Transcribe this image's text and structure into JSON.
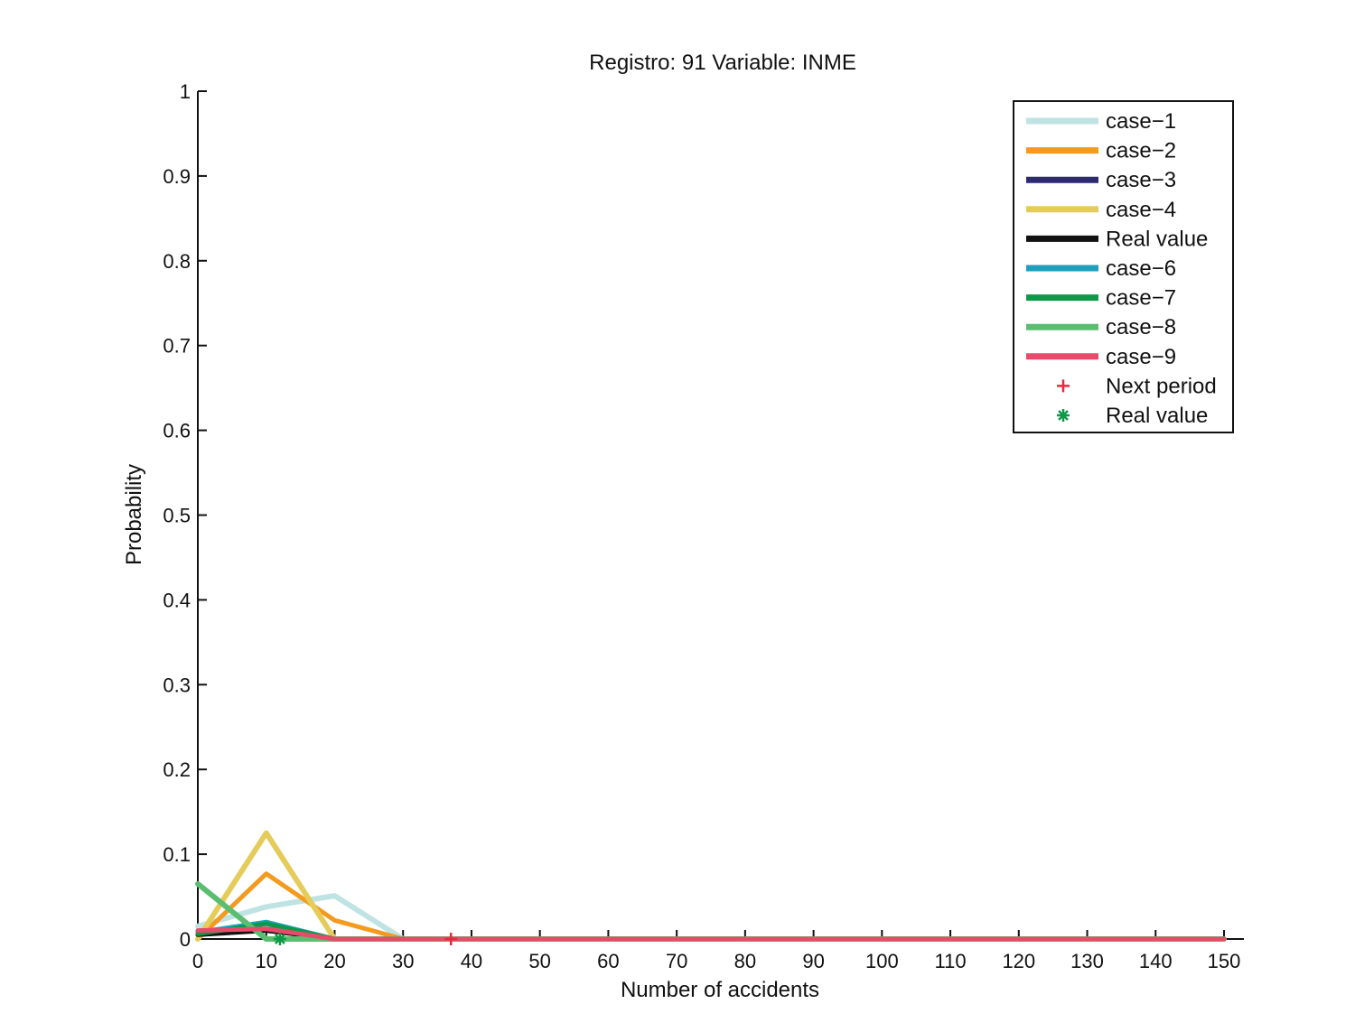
{
  "chart_data": {
    "type": "line",
    "title": "Registro: 91 Variable: INME",
    "xlabel": "Number of accidents",
    "ylabel": "Probability",
    "xlim": [
      0,
      150
    ],
    "ylim": [
      0,
      1
    ],
    "xticks": [
      0,
      10,
      20,
      30,
      40,
      50,
      60,
      70,
      80,
      90,
      100,
      110,
      120,
      130,
      140,
      150
    ],
    "yticks": [
      0,
      0.1,
      0.2,
      0.3,
      0.4,
      0.5,
      0.6,
      0.7,
      0.8,
      0.9,
      1
    ],
    "ytick_labels": [
      "0",
      "0.1",
      "0.2",
      "0.3",
      "0.4",
      "0.5",
      "0.6",
      "0.7",
      "0.8",
      "0.9",
      "1"
    ],
    "grid": false,
    "legend_position": "top-right",
    "series": [
      {
        "name": "case−1",
        "color": "#bfe3e3",
        "x": [
          0,
          10,
          20,
          30,
          150
        ],
        "y": [
          0.015,
          0.038,
          0.051,
          0.0,
          0.0
        ]
      },
      {
        "name": "case−2",
        "color": "#f39a1f",
        "x": [
          0,
          10,
          20,
          30,
          150
        ],
        "y": [
          0.0,
          0.077,
          0.022,
          0.0,
          0.0
        ]
      },
      {
        "name": "case−3",
        "color": "#2e2a6e",
        "x": [
          0,
          10,
          20,
          150
        ],
        "y": [
          0.005,
          0.012,
          0.0,
          0.0
        ]
      },
      {
        "name": "case−4",
        "color": "#e5cc5a",
        "x": [
          0,
          10,
          20,
          150
        ],
        "y": [
          0.0,
          0.125,
          0.0,
          0.0
        ]
      },
      {
        "name": "Real value",
        "color": "#111111",
        "x": [
          0,
          10,
          20,
          150
        ],
        "y": [
          0.005,
          0.01,
          0.0,
          0.0
        ]
      },
      {
        "name": "case−6",
        "color": "#1ea0bc",
        "x": [
          0,
          10,
          20,
          150
        ],
        "y": [
          0.008,
          0.02,
          0.0,
          0.0
        ]
      },
      {
        "name": "case−7",
        "color": "#0d9a48",
        "x": [
          0,
          10,
          20,
          150
        ],
        "y": [
          0.006,
          0.018,
          0.0,
          0.0
        ]
      },
      {
        "name": "case−8",
        "color": "#5bbd6f",
        "x": [
          0,
          10,
          20,
          150
        ],
        "y": [
          0.065,
          0.0,
          0.0,
          0.0
        ]
      },
      {
        "name": "case−9",
        "color": "#e84a6a",
        "x": [
          0,
          10,
          20,
          150
        ],
        "y": [
          0.01,
          0.012,
          0.0,
          0.0
        ]
      }
    ],
    "markers": [
      {
        "name": "Next period",
        "symbol": "+",
        "color": "#e8283c",
        "x": 37,
        "y": 0
      },
      {
        "name": "Real value",
        "symbol": "*",
        "color": "#0d9a48",
        "x": 12,
        "y": 0
      }
    ]
  }
}
